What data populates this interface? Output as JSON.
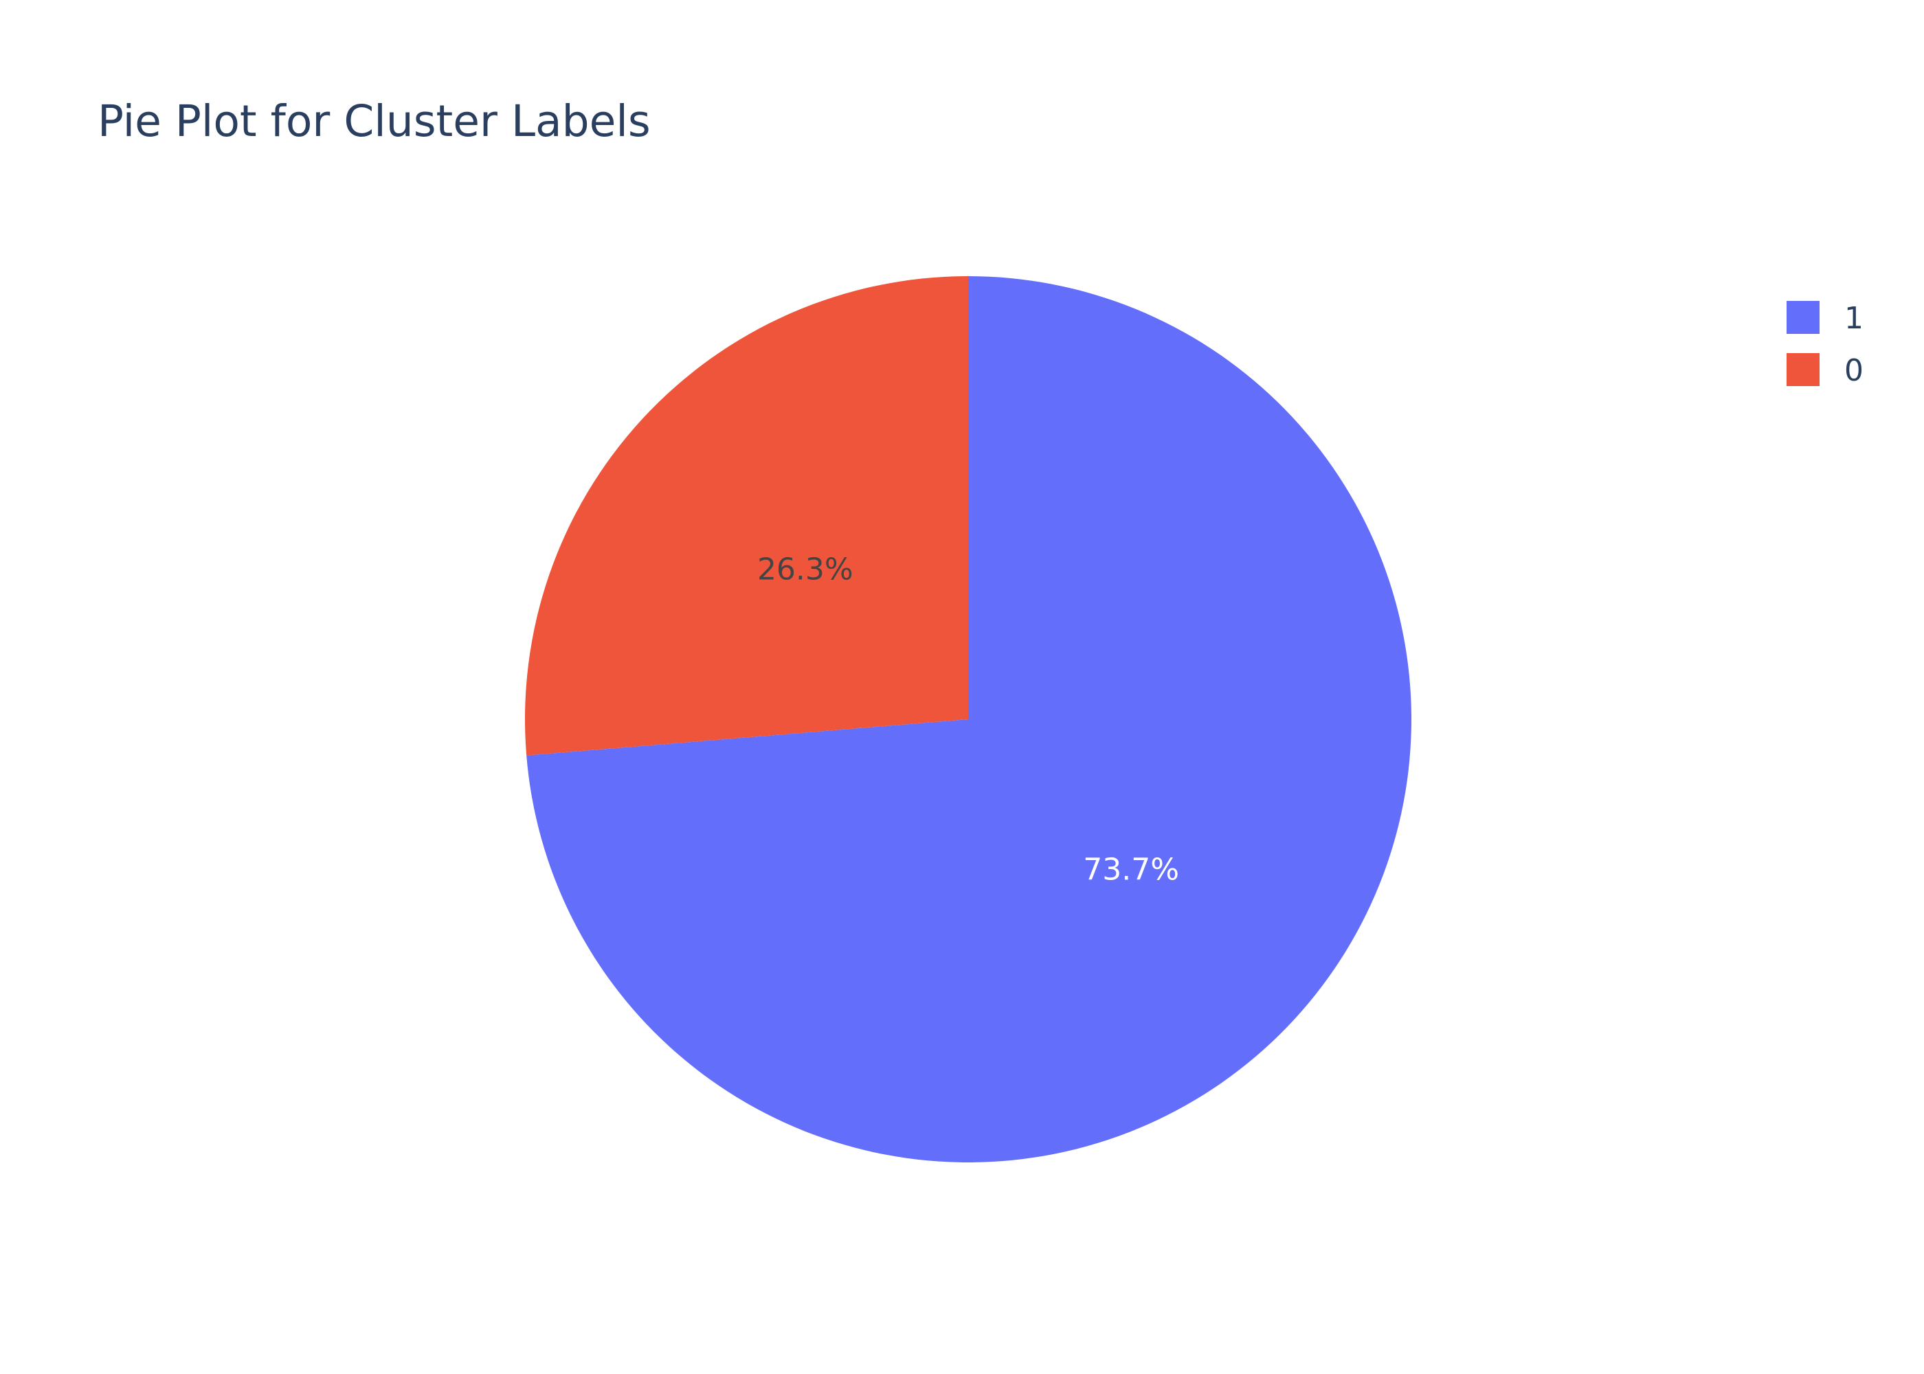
{
  "chart_data": {
    "type": "pie",
    "title": "Pie Plot for Cluster Labels",
    "slices": [
      {
        "label": "1",
        "percent": 73.7,
        "percent_text": "73.7%",
        "color": "#636efa",
        "text_color": "#ffffff"
      },
      {
        "label": "0",
        "percent": 26.3,
        "percent_text": "26.3%",
        "color": "#ef553b",
        "text_color": "#444444"
      }
    ],
    "direction": "clockwise",
    "start": "top",
    "legend": {
      "position": "top-right",
      "entries": [
        "1",
        "0"
      ]
    }
  }
}
